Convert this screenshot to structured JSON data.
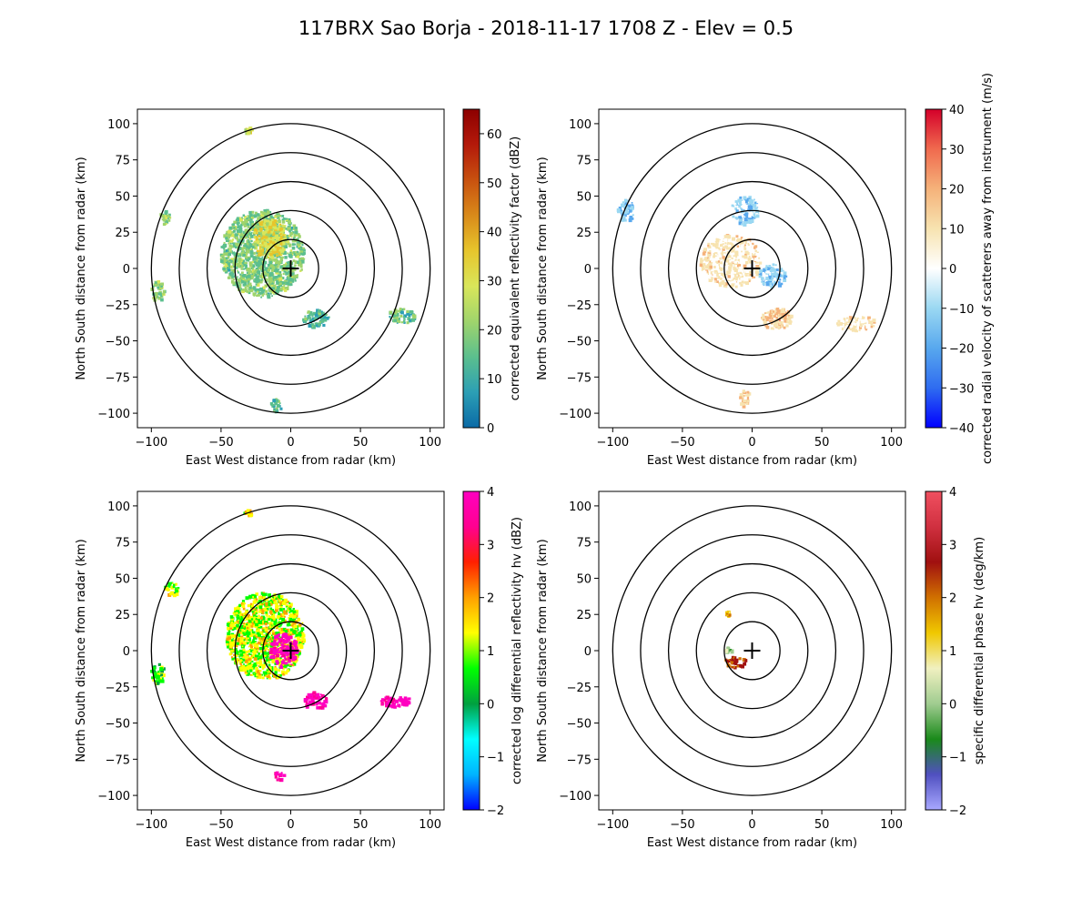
{
  "chart_data": {
    "title": "117BRX Sao Borja - 2018-11-17 1708 Z -  Elev = 0.5",
    "type": "heatmap",
    "panels": [
      {
        "id": "reflectivity",
        "xlabel": "East West distance from radar (km)",
        "ylabel": "North South distance from radar (km)",
        "xlim": [
          -110,
          110
        ],
        "ylim": [
          -110,
          110
        ],
        "x_ticks": [
          "−100",
          "−50",
          "0",
          "50",
          "100"
        ],
        "y_ticks": [
          "100",
          "75",
          "50",
          "25",
          "0",
          "−25",
          "−50",
          "−75",
          "−100"
        ],
        "range_rings_km": [
          20,
          40,
          60,
          80,
          100
        ],
        "colorbar": {
          "label": "corrected equivalent reflectivity factor (dBZ)",
          "range": [
            0,
            65
          ],
          "ticks": [
            "0",
            "10",
            "20",
            "30",
            "40",
            "50",
            "60"
          ],
          "colors": [
            "#0a6aa6",
            "#2c9fb5",
            "#5bbf8e",
            "#9fd46c",
            "#d9e65a",
            "#e7c52c",
            "#d98a1a",
            "#c8510f",
            "#b3190a",
            "#8c0000"
          ]
        },
        "echoes": [
          {
            "x": -20,
            "y": 10,
            "rx": 30,
            "ry": 30,
            "value": 20
          },
          {
            "x": -15,
            "y": 20,
            "rx": 12,
            "ry": 14,
            "value": 32
          },
          {
            "x": 18,
            "y": -35,
            "rx": 10,
            "ry": 6,
            "value": 15
          },
          {
            "x": 80,
            "y": -33,
            "rx": 10,
            "ry": 5,
            "value": 18
          },
          {
            "x": -95,
            "y": -16,
            "rx": 5,
            "ry": 7,
            "value": 20
          },
          {
            "x": -90,
            "y": 35,
            "rx": 4,
            "ry": 5,
            "value": 22
          },
          {
            "x": -10,
            "y": -95,
            "rx": 4,
            "ry": 5,
            "value": 15
          },
          {
            "x": -30,
            "y": 95,
            "rx": 3,
            "ry": 2,
            "value": 28
          }
        ]
      },
      {
        "id": "velocity",
        "xlabel": "East West distance from radar (km)",
        "ylabel": "North South distance from radar (km)",
        "xlim": [
          -110,
          110
        ],
        "ylim": [
          -110,
          110
        ],
        "x_ticks": [
          "−100",
          "−50",
          "0",
          "50",
          "100"
        ],
        "y_ticks": [
          "100",
          "75",
          "50",
          "25",
          "0",
          "−25",
          "−50",
          "−75",
          "−100"
        ],
        "range_rings_km": [
          20,
          40,
          60,
          80,
          100
        ],
        "colorbar": {
          "label": "corrected radial velocity of scatterers away from instrument (m/s)",
          "range": [
            -40,
            40
          ],
          "ticks": [
            "−40",
            "−30",
            "−20",
            "−10",
            "0",
            "10",
            "20",
            "30",
            "40"
          ],
          "colors": [
            "#0000ff",
            "#2f6cf0",
            "#58a8ee",
            "#9ad8f2",
            "#ffffff",
            "#f7e3b0",
            "#f5b27a",
            "#f06a4e",
            "#d4002a"
          ]
        },
        "echoes": [
          {
            "x": -15,
            "y": 5,
            "rx": 22,
            "ry": 18,
            "value": 6
          },
          {
            "x": 15,
            "y": -5,
            "rx": 10,
            "ry": 8,
            "value": -10
          },
          {
            "x": 18,
            "y": -35,
            "rx": 12,
            "ry": 7,
            "value": 14
          },
          {
            "x": 75,
            "y": -38,
            "rx": 14,
            "ry": 5,
            "value": 8
          },
          {
            "x": -90,
            "y": 40,
            "rx": 6,
            "ry": 8,
            "value": -12
          },
          {
            "x": -5,
            "y": 40,
            "rx": 10,
            "ry": 10,
            "value": -10
          },
          {
            "x": -5,
            "y": -90,
            "rx": 4,
            "ry": 7,
            "value": 12
          }
        ]
      },
      {
        "id": "zdr",
        "xlabel": "East West distance from radar (km)",
        "ylabel": "North South distance from radar (km)",
        "xlim": [
          -110,
          110
        ],
        "ylim": [
          -110,
          110
        ],
        "x_ticks": [
          "−100",
          "−50",
          "0",
          "50",
          "100"
        ],
        "y_ticks": [
          "100",
          "75",
          "50",
          "25",
          "0",
          "−25",
          "−50",
          "−75",
          "−100"
        ],
        "range_rings_km": [
          20,
          40,
          60,
          80,
          100
        ],
        "colorbar": {
          "label": "corrected log differential reflectivity hv (dBZ)",
          "range": [
            -2,
            4
          ],
          "ticks": [
            "−2",
            "−1",
            "0",
            "1",
            "2",
            "3",
            "4"
          ],
          "colors": [
            "#0000ff",
            "#00b4ff",
            "#00ffff",
            "#00a040",
            "#00ff00",
            "#ffff00",
            "#ffa000",
            "#ff2000",
            "#ff0090",
            "#ff00c0"
          ]
        },
        "echoes": [
          {
            "x": -18,
            "y": 10,
            "rx": 28,
            "ry": 30,
            "value": 1.2
          },
          {
            "x": -5,
            "y": 0,
            "rx": 10,
            "ry": 12,
            "value": 3.8
          },
          {
            "x": 18,
            "y": -35,
            "rx": 8,
            "ry": 6,
            "value": 3.6
          },
          {
            "x": 75,
            "y": -35,
            "rx": 12,
            "ry": 4,
            "value": 3.7
          },
          {
            "x": -95,
            "y": -16,
            "rx": 5,
            "ry": 7,
            "value": 0.6
          },
          {
            "x": -85,
            "y": 42,
            "rx": 5,
            "ry": 5,
            "value": 1.0
          },
          {
            "x": -8,
            "y": -87,
            "rx": 4,
            "ry": 3,
            "value": 3.9
          },
          {
            "x": -30,
            "y": 95,
            "rx": 3,
            "ry": 2,
            "value": 1.5
          }
        ]
      },
      {
        "id": "kdp",
        "xlabel": "East West distance from radar (km)",
        "ylabel": "North South distance from radar (km)",
        "xlim": [
          -110,
          110
        ],
        "ylim": [
          -110,
          110
        ],
        "x_ticks": [
          "−100",
          "−50",
          "0",
          "50",
          "100"
        ],
        "y_ticks": [
          "100",
          "75",
          "50",
          "25",
          "0",
          "−25",
          "−50",
          "−75",
          "−100"
        ],
        "range_rings_km": [
          20,
          40,
          60,
          80,
          100
        ],
        "colorbar": {
          "label": "specific differential phase hv (deg/km)",
          "range": [
            -2,
            4
          ],
          "ticks": [
            "−2",
            "−1",
            "0",
            "1",
            "2",
            "3",
            "4"
          ],
          "colors": [
            "#a8a8ff",
            "#5050c0",
            "#1a8a1a",
            "#a0cc90",
            "#f0f0c0",
            "#f0c800",
            "#d07000",
            "#a01010",
            "#d03040",
            "#f05060"
          ]
        },
        "echoes": [
          {
            "x": -12,
            "y": -8,
            "rx": 8,
            "ry": 4,
            "value": 2.1
          },
          {
            "x": -17,
            "y": 0,
            "rx": 3,
            "ry": 2,
            "value": 0.2
          },
          {
            "x": -17,
            "y": 25,
            "rx": 1.5,
            "ry": 2,
            "value": 1.2
          }
        ]
      }
    ]
  }
}
